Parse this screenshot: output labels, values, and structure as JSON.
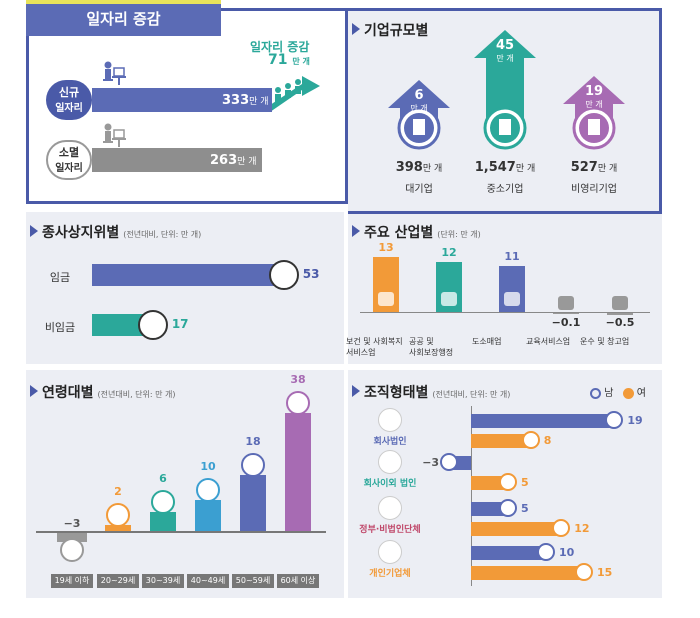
{
  "top_left": {
    "title": "일자리 증감",
    "increase_label": "일자리 증감",
    "increase_value": "71",
    "increase_unit": "만 개",
    "rows": [
      {
        "label1": "신규",
        "label2": "일자리",
        "value": 333,
        "text": "333",
        "unit": "만 개"
      },
      {
        "label1": "소멸",
        "label2": "일자리",
        "value": 263,
        "text": "263",
        "unit": "만 개"
      }
    ]
  },
  "company_size": {
    "title": "기업규모별",
    "items": [
      {
        "change": "6",
        "change_unit": "만 개",
        "total": "398",
        "total_unit": "만 개",
        "name": "대기업",
        "color": "#5b6bb5"
      },
      {
        "change": "45",
        "change_unit": "만 개",
        "total": "1,547",
        "total_unit": "만 개",
        "name": "중소기업",
        "color": "#2ba89a"
      },
      {
        "change": "19",
        "change_unit": "만 개",
        "total": "527",
        "total_unit": "만 개",
        "name": "비영리기업",
        "color": "#a76bb3"
      }
    ]
  },
  "status": {
    "title": "종사상지위별",
    "sub": "(전년대비, 단위: 만 개)"
  },
  "industry": {
    "title": "주요 산업별",
    "sub": "(단위: 만 개)"
  },
  "age": {
    "title": "연령대별",
    "sub": "(전년대비, 단위: 만 개)"
  },
  "org": {
    "title": "조직형태별",
    "sub": "(전년대비, 단위: 만 개)",
    "legend_male": "남",
    "legend_female": "여"
  },
  "chart_data": [
    {
      "type": "bar",
      "title": "종사상지위별",
      "categories": [
        "임금",
        "비임금"
      ],
      "values": [
        53,
        17
      ],
      "colors": [
        "#5b6bb5",
        "#2ba89a"
      ]
    },
    {
      "type": "bar",
      "title": "주요 산업별",
      "categories": [
        "보건 및 사회복지 서비스업",
        "공공 및 사회보장행정",
        "도소매업",
        "교육서비스업",
        "운수 및 창고업"
      ],
      "labels1": [
        "보건 및 사회복지",
        "공공 및",
        "도소매업",
        "교육서비스업",
        "운수 및 창고업"
      ],
      "labels2": [
        "서비스업",
        "사회보장행정",
        "",
        "",
        ""
      ],
      "values": [
        13,
        12,
        11,
        -0.1,
        -0.5
      ],
      "value_labels": [
        "13",
        "12",
        "11",
        "−0.1",
        "−0.5"
      ],
      "colors": [
        "#f29a38",
        "#2ba89a",
        "#5b6bb5",
        "#999999",
        "#999999"
      ]
    },
    {
      "type": "bar",
      "title": "연령대별",
      "categories": [
        "19세 이하",
        "20~29세",
        "30~39세",
        "40~49세",
        "50~59세",
        "60세 이상"
      ],
      "values": [
        -3,
        2,
        6,
        10,
        18,
        38
      ],
      "value_labels": [
        "−3",
        "2",
        "6",
        "10",
        "18",
        "38"
      ],
      "colors": [
        "#999999",
        "#f29a38",
        "#2ba89a",
        "#3b9fd1",
        "#5b6bb5",
        "#a76bb3"
      ]
    },
    {
      "type": "bar",
      "title": "조직형태별",
      "categories": [
        "회사법인",
        "회사이외 법인",
        "정부·비법인단체",
        "개인기업체"
      ],
      "series": [
        {
          "name": "남",
          "values": [
            19,
            -3,
            5,
            10
          ],
          "labels": [
            "19",
            "−3",
            "5",
            "10"
          ],
          "color": "#5b6bb5"
        },
        {
          "name": "여",
          "values": [
            8,
            5,
            12,
            15
          ],
          "labels": [
            "8",
            "5",
            "12",
            "15"
          ],
          "color": "#f29a38"
        }
      ],
      "category_colors": [
        "#5b6bb5",
        "#2ba89a",
        "#c0486a",
        "#f29a38"
      ]
    }
  ]
}
